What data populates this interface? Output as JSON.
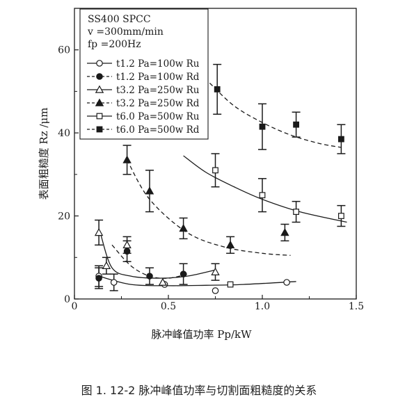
{
  "figure": {
    "caption": "图 1. 12-2   脉冲峰值功率与切割面粗糙度的关系"
  },
  "chart_data": {
    "type": "scatter",
    "xlabel": "脉冲峰值功率 Pp/kW",
    "ylabel": "表面粗糙度 Rz /μm",
    "xlim": [
      0,
      1.5
    ],
    "ylim": [
      0,
      70
    ],
    "x_ticks": [
      "0",
      "0.5",
      "1.0",
      "1.5"
    ],
    "y_ticks": [
      "0",
      "20",
      "40",
      "60"
    ],
    "grid": false,
    "legend_position": "top-left",
    "legend_header": [
      "SS400   SPCC",
      "v =300mm/min",
      "fp =200Hz"
    ],
    "series": [
      {
        "name": "t1.2 Pa=100w Ru",
        "marker": "circle-open",
        "line": "solid",
        "x": [
          0.13,
          0.21,
          0.48,
          0.75,
          1.13
        ],
        "y": [
          5.5,
          4.0,
          3.5,
          2.0,
          4.0
        ],
        "err": [
          2.5,
          2.0,
          0,
          0,
          0
        ],
        "fit_x": [
          0.13,
          0.3,
          0.5,
          0.7,
          0.9,
          1.18
        ],
        "fit_y": [
          5.5,
          3.5,
          3.2,
          3.3,
          3.5,
          4.2
        ]
      },
      {
        "name": "t1.2 Pa=100w Rd",
        "marker": "circle-filled",
        "line": "dashed",
        "x": [
          0.13,
          0.28,
          0.4,
          0.58
        ],
        "y": [
          5.0,
          11.5,
          5.5,
          6.0
        ],
        "err": [
          2.5,
          2.5,
          2.0,
          2.5
        ],
        "fit_x": [
          0.2,
          0.3,
          0.4,
          0.5,
          0.6
        ],
        "fit_y": [
          13.0,
          8.0,
          5.5,
          5.0,
          6.0
        ]
      },
      {
        "name": "t3.2 Pa=250w Ru",
        "marker": "triangle-open",
        "line": "solid",
        "x": [
          0.13,
          0.17,
          0.28,
          0.47,
          0.75
        ],
        "y": [
          16.0,
          8.0,
          13.0,
          4.0,
          6.5
        ],
        "err": [
          3.0,
          2.0,
          2.0,
          0,
          2.0
        ],
        "fit_x": [
          0.14,
          0.2,
          0.3,
          0.45,
          0.6,
          0.75
        ],
        "fit_y": [
          15.5,
          7.5,
          5.5,
          5.0,
          5.5,
          7.0
        ]
      },
      {
        "name": "t3.2 Pa=250w Rd",
        "marker": "triangle-filled",
        "line": "dashed",
        "x": [
          0.28,
          0.4,
          0.58,
          0.83,
          1.12
        ],
        "y": [
          33.5,
          26.0,
          17.0,
          13.0,
          16.0
        ],
        "err": [
          3.5,
          5.0,
          2.5,
          2.0,
          2.0
        ],
        "fit_x": [
          0.28,
          0.4,
          0.6,
          0.8,
          1.0,
          1.15
        ],
        "fit_y": [
          33.5,
          24.0,
          16.0,
          12.5,
          11.0,
          10.5
        ]
      },
      {
        "name": "t6.0 Pa=500w Ru",
        "marker": "square-open",
        "line": "solid",
        "x": [
          0.75,
          0.83,
          1.0,
          1.18,
          1.42
        ],
        "y": [
          31.0,
          3.5,
          25.0,
          21.0,
          20.0
        ],
        "err": [
          4.0,
          0,
          4.0,
          2.5,
          2.5
        ],
        "fit_x": [
          0.58,
          0.7,
          0.85,
          1.0,
          1.2,
          1.45
        ],
        "fit_y": [
          34.5,
          30.5,
          27.0,
          24.0,
          21.0,
          18.5
        ]
      },
      {
        "name": "t6.0 Pa=500w Rd",
        "marker": "square-filled",
        "line": "dashed",
        "x": [
          0.76,
          1.0,
          1.18,
          1.42
        ],
        "y": [
          50.5,
          41.5,
          42.0,
          38.5
        ],
        "err": [
          6.0,
          5.5,
          3.0,
          3.5
        ],
        "fit_x": [
          0.72,
          0.85,
          1.0,
          1.15,
          1.3,
          1.42
        ],
        "fit_y": [
          52.0,
          46.5,
          42.5,
          39.5,
          37.5,
          36.5
        ]
      }
    ]
  }
}
